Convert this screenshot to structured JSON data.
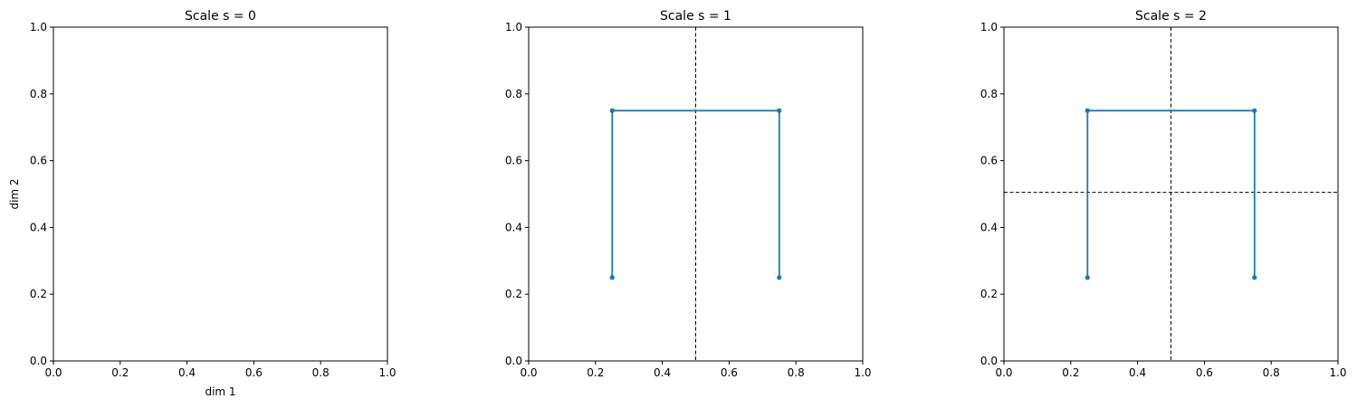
{
  "chart_data": [
    {
      "type": "line",
      "title": "Scale s = 0",
      "xlabel": "dim 1",
      "ylabel": "dim 2",
      "xlim": [
        0,
        1
      ],
      "ylim": [
        0,
        1
      ],
      "xticks": [
        "0.0",
        "0.2",
        "0.4",
        "0.6",
        "0.8",
        "1.0"
      ],
      "yticks": [
        "0.0",
        "0.2",
        "0.4",
        "0.6",
        "0.8",
        "1.0"
      ],
      "grid": false,
      "series": [],
      "split_lines": []
    },
    {
      "type": "line",
      "title": "Scale s = 1",
      "xlabel": "",
      "ylabel": "",
      "xlim": [
        0,
        1
      ],
      "ylim": [
        0,
        1
      ],
      "xticks": [
        "0.0",
        "0.2",
        "0.4",
        "0.6",
        "0.8",
        "1.0"
      ],
      "yticks": [
        "0.0",
        "0.2",
        "0.4",
        "0.6",
        "0.8",
        "1.0"
      ],
      "grid": false,
      "series": [
        {
          "color": "#1f77b4",
          "points": [
            [
              0.25,
              0.25
            ],
            [
              0.25,
              0.75
            ],
            [
              0.75,
              0.75
            ],
            [
              0.75,
              0.25
            ]
          ]
        }
      ],
      "split_lines": [
        {
          "orientation": "vertical",
          "value": 0.5
        }
      ]
    },
    {
      "type": "line",
      "title": "Scale s = 2",
      "xlabel": "",
      "ylabel": "",
      "xlim": [
        0,
        1
      ],
      "ylim": [
        0,
        1
      ],
      "xticks": [
        "0.0",
        "0.2",
        "0.4",
        "0.6",
        "0.8",
        "1.0"
      ],
      "yticks": [
        "0.0",
        "0.2",
        "0.4",
        "0.6",
        "0.8",
        "1.0"
      ],
      "grid": false,
      "series": [
        {
          "color": "#1f77b4",
          "points": [
            [
              0.25,
              0.25
            ],
            [
              0.25,
              0.75
            ],
            [
              0.75,
              0.75
            ],
            [
              0.75,
              0.25
            ]
          ]
        }
      ],
      "split_lines": [
        {
          "orientation": "vertical",
          "value": 0.5
        },
        {
          "orientation": "horizontal",
          "value": 0.505
        }
      ]
    }
  ]
}
